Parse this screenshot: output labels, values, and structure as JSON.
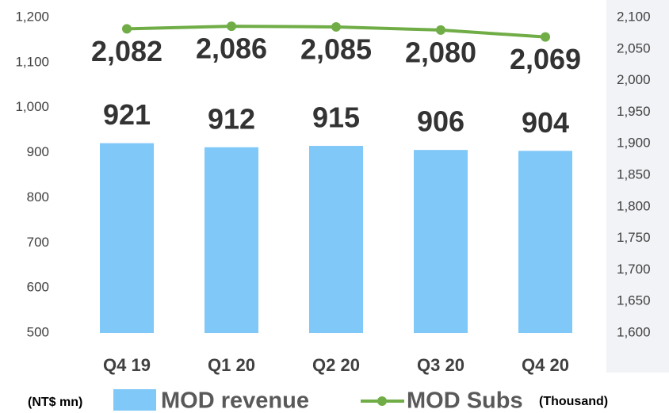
{
  "chart_data": {
    "type": "bar-line",
    "categories": [
      "Q4 19",
      "Q1 20",
      "Q2 20",
      "Q3 20",
      "Q4 20"
    ],
    "series": [
      {
        "name": "MOD revenue",
        "color": "#7fc8f8",
        "type": "bar",
        "axis": "y",
        "values": [
          921,
          912,
          915,
          906,
          904
        ]
      },
      {
        "name": "MOD Subs",
        "color": "#70ad47",
        "type": "line",
        "axis": "y2",
        "values": [
          2082,
          2086,
          2085,
          2080,
          2069
        ],
        "value_labels": [
          "2,082",
          "2,086",
          "2,085",
          "2,080",
          "2,069"
        ]
      }
    ],
    "y_unit": "(NT$ mn)",
    "y2_unit": "(Thousand)",
    "ylim": [
      500,
      1200
    ],
    "yticks": [
      500,
      600,
      700,
      800,
      900,
      {
        "value": 1000,
        "label": "1,000"
      },
      {
        "value": 1100,
        "label": "1,100"
      },
      {
        "value": 1200,
        "label": "1,200"
      }
    ],
    "y2lim": [
      1600,
      2100
    ],
    "y2ticks": [
      {
        "value": 1600,
        "label": "1,600"
      },
      {
        "value": 1650,
        "label": "1,650"
      },
      {
        "value": 1700,
        "label": "1,700"
      },
      {
        "value": 1750,
        "label": "1,750"
      },
      {
        "value": 1800,
        "label": "1,800"
      },
      {
        "value": 1850,
        "label": "1,850"
      },
      {
        "value": 1900,
        "label": "1,900"
      },
      {
        "value": 1950,
        "label": "1,950"
      },
      {
        "value": 2000,
        "label": "2,000"
      },
      {
        "value": 2050,
        "label": "2,050"
      },
      {
        "value": 2100,
        "label": "2,100"
      }
    ],
    "grid": false
  }
}
